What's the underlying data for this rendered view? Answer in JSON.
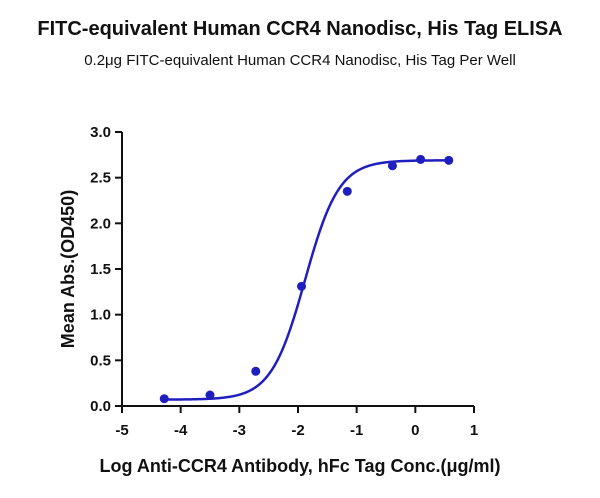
{
  "chart_data": {
    "type": "scatter",
    "title": "FITC-equivalent Human CCR4 Nanodisc, His Tag ELISA",
    "subtitle": "0.2μg FITC-equivalent Human CCR4 Nanodisc, His Tag Per Well",
    "xlabel": "Log Anti-CCR4 Antibody, hFc Tag Conc.(μg/ml)",
    "ylabel": "Mean Abs.(OD450)",
    "xlim": [
      -5,
      1
    ],
    "ylim": [
      0,
      3.0
    ],
    "xticks": [
      "-5",
      "-4",
      "-3",
      "-2",
      "-1",
      "0",
      "1"
    ],
    "yticks": [
      "0.0",
      "0.5",
      "1.0",
      "1.5",
      "2.0",
      "2.5",
      "3.0"
    ],
    "grid": false,
    "legend": "none",
    "series_color": "#1f1fbf",
    "series": [
      {
        "x": [
          -4.28,
          -3.5,
          -2.72,
          -1.94,
          -1.16,
          -0.39,
          0.09,
          0.57
        ],
        "y": [
          0.08,
          0.12,
          0.38,
          1.31,
          2.35,
          2.63,
          2.7,
          2.69
        ]
      }
    ],
    "fit_curve": {
      "type": "4PL",
      "bottom": 0.07,
      "top": 2.69,
      "logEC50": -1.88,
      "hill": 1.5,
      "x_range": [
        -4.28,
        0.57
      ]
    }
  }
}
